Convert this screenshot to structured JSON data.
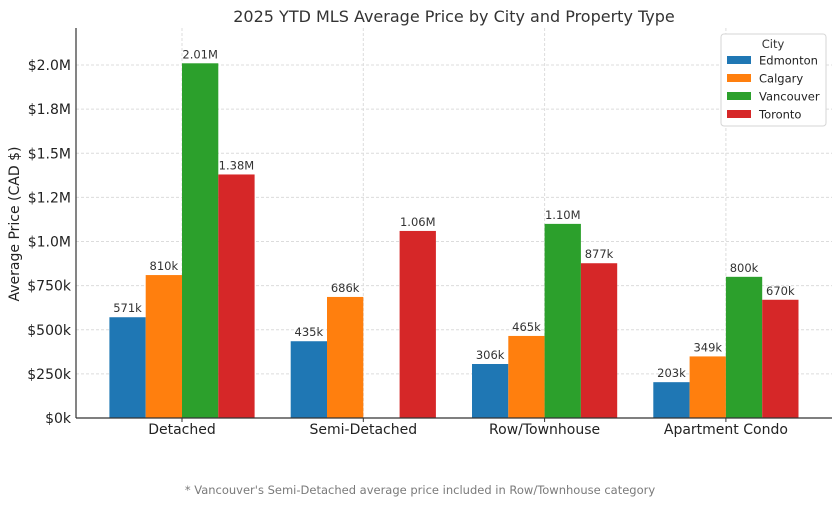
{
  "chart_data": {
    "type": "bar",
    "title": "2025 YTD MLS Average Price by City and Property Type",
    "xlabel": "",
    "ylabel": "Average Price (CAD $)",
    "categories": [
      "Detached",
      "Semi-Detached",
      "Row/Townhouse",
      "Apartment Condo"
    ],
    "series": [
      {
        "name": "Edmonton",
        "color": "#1f77b4",
        "values": [
          571000,
          435000,
          306000,
          203000
        ],
        "labels": [
          "571k",
          "435k",
          "306k",
          "203k"
        ]
      },
      {
        "name": "Calgary",
        "color": "#ff7f0e",
        "values": [
          810000,
          686000,
          465000,
          349000
        ],
        "labels": [
          "810k",
          "686k",
          "465k",
          "349k"
        ]
      },
      {
        "name": "Vancouver",
        "color": "#2ca02c",
        "values": [
          2010000,
          null,
          1100000,
          800000
        ],
        "labels": [
          "2.01M",
          "",
          "1.10M",
          "800k"
        ]
      },
      {
        "name": "Toronto",
        "color": "#d62728",
        "values": [
          1380000,
          1060000,
          877000,
          670000
        ],
        "labels": [
          "1.38M",
          "1.06M",
          "877k",
          "670k"
        ]
      }
    ],
    "yticks": [
      0,
      250000,
      500000,
      750000,
      1000000,
      1250000,
      1500000,
      1750000,
      2000000
    ],
    "ytick_labels": [
      "$0k",
      "$250k",
      "$500k",
      "$750k",
      "$1.0M",
      "$1.2M",
      "$1.5M",
      "$1.8M",
      "$2.0M"
    ],
    "ylim": [
      0,
      2210000
    ],
    "grid": true,
    "legend": {
      "title": "City",
      "placement": "top-right",
      "entries": [
        "Edmonton",
        "Calgary",
        "Vancouver",
        "Toronto"
      ]
    },
    "footnote": "* Vancouver's Semi-Detached average price included in Row/Townhouse category"
  }
}
